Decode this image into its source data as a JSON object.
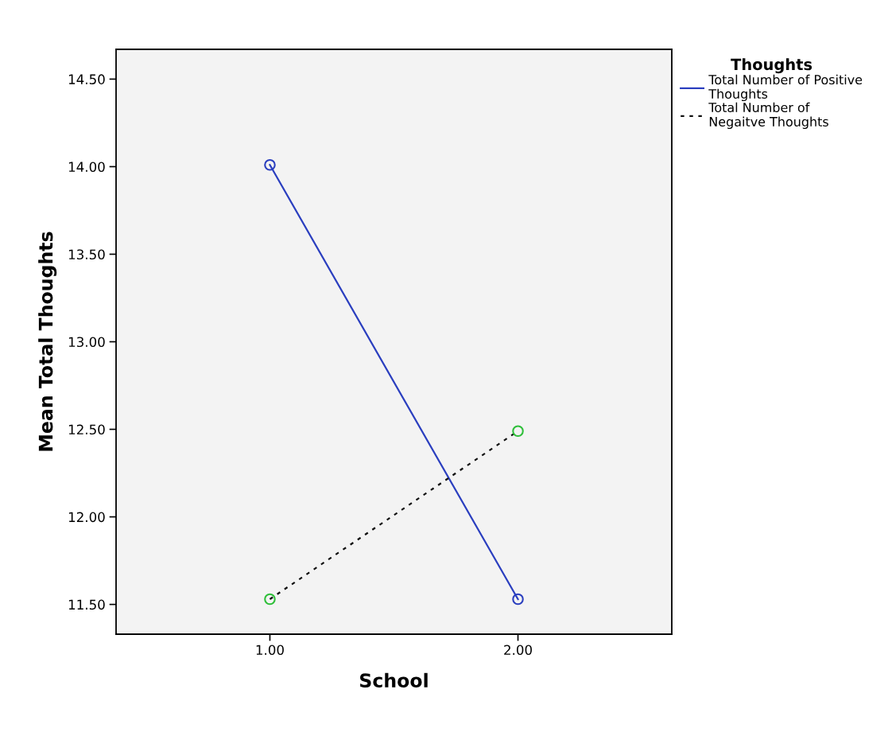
{
  "chart_data": {
    "type": "line",
    "xlabel": "School",
    "ylabel": "Mean Total Thoughts",
    "legend_title": "Thoughts",
    "categories": [
      "1.00",
      "2.00"
    ],
    "series": [
      {
        "name": "Total Number of Positive\nThoughts",
        "color": "#2b3fbf",
        "colors": [
          "#2b3fbf",
          "#2b3fbf"
        ],
        "line_style": "solid",
        "values": [
          14.01,
          11.53
        ]
      },
      {
        "name": "Total Number of\nNegaitve Thoughts",
        "color": "#111111",
        "colors": [
          "#2fbf3a",
          "#2fbf3a"
        ],
        "line_style": "dotted",
        "values": [
          11.53,
          12.49
        ]
      }
    ],
    "ylim": [
      11.33,
      14.67
    ],
    "yticks": [
      {
        "value": 11.5,
        "label": "11.50"
      },
      {
        "value": 12,
        "label": "12.00"
      },
      {
        "value": 12.5,
        "label": "12.50"
      },
      {
        "value": 13,
        "label": "13.00"
      },
      {
        "value": 13.5,
        "label": "13.50"
      },
      {
        "value": 14,
        "label": "14.00"
      },
      {
        "value": 14.5,
        "label": "14.50"
      }
    ],
    "marker": "circle",
    "grid": false,
    "legend": "top right"
  }
}
